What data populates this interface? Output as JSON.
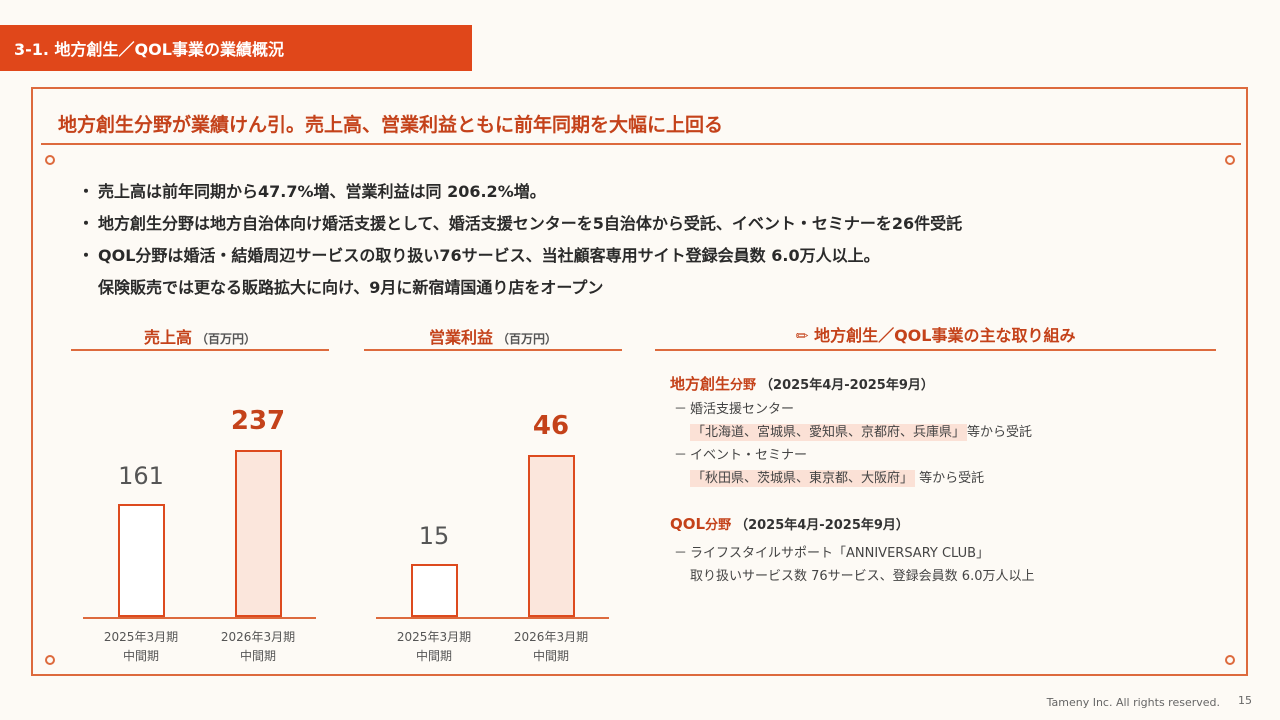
{
  "header": {
    "title": "3-1. 地方創生／QOL事業の業績概況"
  },
  "headline": "地方創生分野が業績けん引。売上高、営業利益ともに前年同期を大幅に上回る",
  "bullets": [
    "売上高は前年同期から47.7%増、営業利益は同 206.2%増。",
    "地方創生分野は地方自治体向け婚活支援として、婚活支援センターを5自治体から受託、イベント・セミナーを26件受託",
    "QOL分野は婚活・結婚周辺サービスの取り扱い76サービス、当社顧客専用サイト登録会員数 6.0万人以上。",
    "保険販売では更なる販路拡大に向け、9月に新宿靖国通り店をオープン"
  ],
  "bullet_mark": "・",
  "chart_data": [
    {
      "type": "bar",
      "title": "売上高",
      "unit": "（百万円）",
      "categories": [
        "2025年3月期\n中間期",
        "2026年3月期\n中間期"
      ],
      "values": [
        161,
        237
      ],
      "ylim": [
        0,
        280
      ],
      "colors": {
        "bar_border": "#dd4a1e",
        "prev_fill": "#ffffff",
        "curr_fill": "#fbe6dc"
      }
    },
    {
      "type": "bar",
      "title": "営業利益",
      "unit": "（百万円）",
      "categories": [
        "2025年3月期\n中間期",
        "2026年3月期\n中間期"
      ],
      "values": [
        15,
        46
      ],
      "ylim": [
        0,
        56
      ],
      "colors": {
        "bar_border": "#dd4a1e",
        "prev_fill": "#ffffff",
        "curr_fill": "#fbe6dc"
      }
    }
  ],
  "initiatives": {
    "title": "地方創生／QOL事業の主な取り組み",
    "icon": "pencil-icon",
    "regional": {
      "name": "地方創生",
      "suffix": "分野",
      "period": "（2025年4月-2025年9月）",
      "items": [
        {
          "dash": "－",
          "text": "婚活支援センター"
        },
        {
          "highlight": "「北海道、宮城県、愛知県、京都府、兵庫県」",
          "text": "等から受託"
        },
        {
          "dash": "－",
          "text": "イベント・セミナー"
        },
        {
          "highlight": "「秋田県、茨城県、東京都、大阪府」",
          "text": " 等から受託"
        }
      ]
    },
    "qol": {
      "name": "QOL",
      "suffix": "分野",
      "period": "（2025年4月-2025年9月）",
      "items": [
        {
          "dash": "－",
          "text": "ライフスタイルサポート「ANNIVERSARY CLUB」"
        },
        {
          "text": "取り扱いサービス数 76サービス、登録会員数 6.0万人以上"
        }
      ]
    }
  },
  "footer": {
    "copyright": "Tameny Inc. All rights reserved.",
    "page": "15"
  },
  "colors": {
    "accent": "#e0471a",
    "accent_dark": "#c4421a",
    "frame": "#dd6a3d",
    "background": "#fdfaf5"
  }
}
